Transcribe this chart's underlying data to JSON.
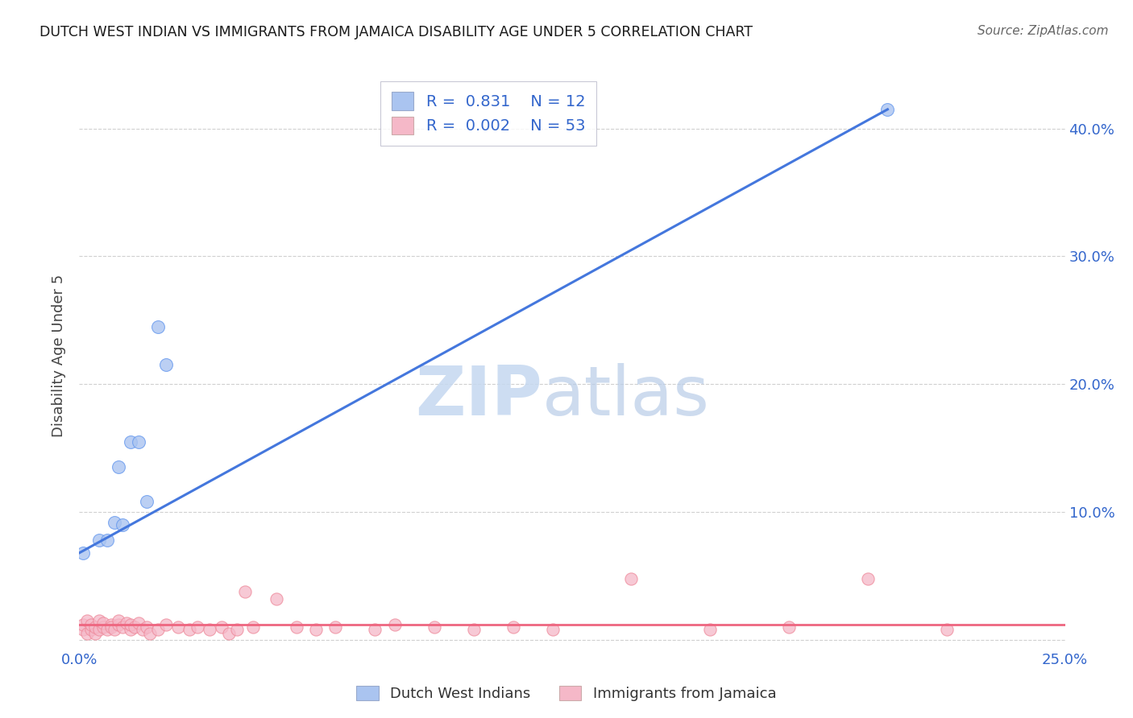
{
  "title": "DUTCH WEST INDIAN VS IMMIGRANTS FROM JAMAICA DISABILITY AGE UNDER 5 CORRELATION CHART",
  "source": "Source: ZipAtlas.com",
  "ylabel": "Disability Age Under 5",
  "xlim": [
    0.0,
    0.25
  ],
  "ylim": [
    -0.005,
    0.45
  ],
  "yticks_right": [
    0.0,
    0.1,
    0.2,
    0.3,
    0.4
  ],
  "ytick_labels_right": [
    "",
    "10.0%",
    "20.0%",
    "30.0%",
    "40.0%"
  ],
  "grid_color": "#d0d0d0",
  "background_color": "#ffffff",
  "blue_color": "#aac4f0",
  "blue_edge_color": "#6699ee",
  "pink_color": "#f5b8c8",
  "pink_edge_color": "#ee8899",
  "blue_line_color": "#4477dd",
  "pink_line_color": "#ee6680",
  "blue_R": 0.831,
  "blue_N": 12,
  "pink_R": 0.002,
  "pink_N": 53,
  "legend_label_blue": "Dutch West Indians",
  "legend_label_pink": "Immigrants from Jamaica",
  "blue_line_x0": 0.0,
  "blue_line_y0": 0.068,
  "blue_line_x1": 0.205,
  "blue_line_y1": 0.415,
  "pink_line_y": 0.012,
  "blue_x": [
    0.001,
    0.005,
    0.007,
    0.009,
    0.01,
    0.011,
    0.013,
    0.015,
    0.017,
    0.02,
    0.022,
    0.205
  ],
  "blue_y": [
    0.068,
    0.078,
    0.078,
    0.092,
    0.135,
    0.09,
    0.155,
    0.155,
    0.108,
    0.245,
    0.215,
    0.415
  ],
  "pink_x": [
    0.001,
    0.001,
    0.002,
    0.002,
    0.003,
    0.003,
    0.004,
    0.004,
    0.005,
    0.005,
    0.006,
    0.006,
    0.007,
    0.008,
    0.008,
    0.009,
    0.01,
    0.01,
    0.011,
    0.012,
    0.013,
    0.013,
    0.014,
    0.015,
    0.016,
    0.017,
    0.018,
    0.02,
    0.022,
    0.025,
    0.028,
    0.03,
    0.033,
    0.036,
    0.038,
    0.04,
    0.042,
    0.044,
    0.05,
    0.055,
    0.06,
    0.065,
    0.075,
    0.08,
    0.09,
    0.1,
    0.11,
    0.12,
    0.14,
    0.16,
    0.18,
    0.2,
    0.22
  ],
  "pink_y": [
    0.008,
    0.012,
    0.005,
    0.015,
    0.008,
    0.012,
    0.005,
    0.01,
    0.008,
    0.015,
    0.01,
    0.013,
    0.008,
    0.012,
    0.01,
    0.008,
    0.012,
    0.015,
    0.01,
    0.013,
    0.008,
    0.012,
    0.01,
    0.013,
    0.008,
    0.01,
    0.005,
    0.008,
    0.012,
    0.01,
    0.008,
    0.01,
    0.008,
    0.01,
    0.005,
    0.008,
    0.038,
    0.01,
    0.032,
    0.01,
    0.008,
    0.01,
    0.008,
    0.012,
    0.01,
    0.008,
    0.01,
    0.008,
    0.048,
    0.008,
    0.01,
    0.048,
    0.008
  ]
}
